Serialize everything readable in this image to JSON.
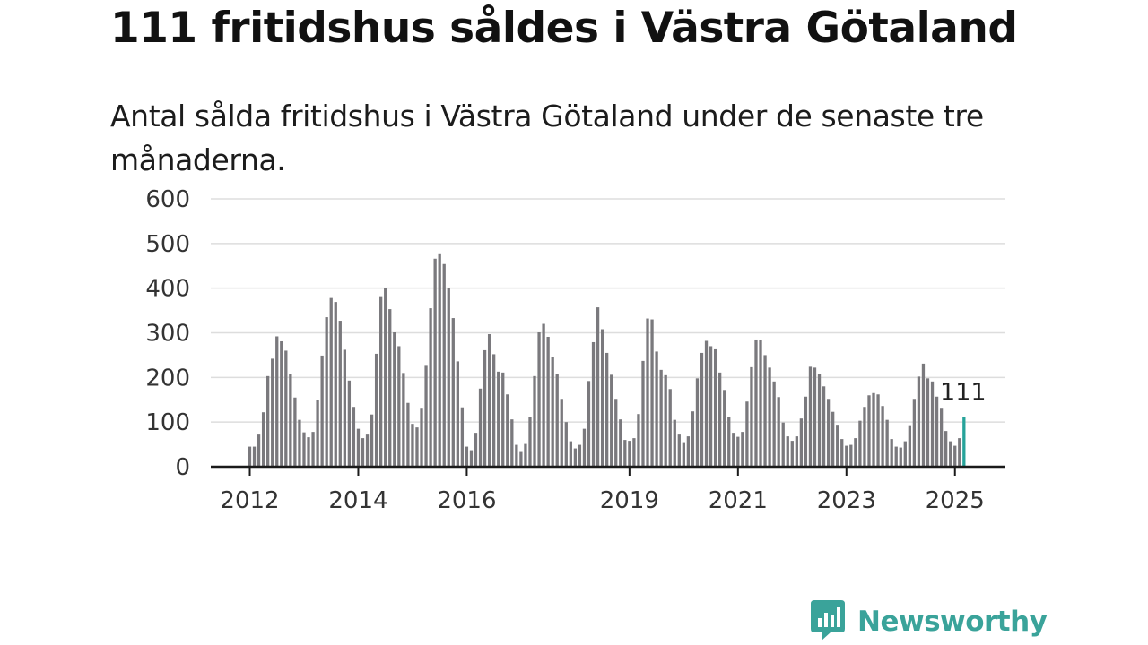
{
  "header": {
    "title": "111 fritidshus såldes i Västra Götaland",
    "subtitle": "Antal sålda fritidshus i Västra Götaland under de senaste tre månaderna."
  },
  "brand": {
    "name": "Newsworthy",
    "icon": "newsworthy-logo-icon"
  },
  "colors": {
    "bars": "#7a797d",
    "highlight": "#27a39a",
    "grid": "#dddddd",
    "axis": "#1a1a1a",
    "brand": "#3aa39a"
  },
  "chart_data": {
    "type": "bar",
    "ylim": [
      0,
      600
    ],
    "yticks": [
      0,
      100,
      200,
      300,
      400,
      500,
      600
    ],
    "xtick_labels": [
      "2012",
      "2014",
      "2016",
      "2019",
      "2021",
      "2023",
      "2025"
    ],
    "grid": true,
    "x_start": "2012-01",
    "x_end": "2025-03",
    "values": [
      45,
      45,
      72,
      122,
      203,
      242,
      292,
      281,
      260,
      208,
      155,
      105,
      77,
      66,
      78,
      150,
      249,
      335,
      378,
      369,
      327,
      262,
      193,
      134,
      85,
      64,
      72,
      117,
      253,
      382,
      401,
      353,
      301,
      270,
      210,
      143,
      96,
      88,
      132,
      228,
      355,
      466,
      478,
      454,
      401,
      333,
      236,
      133,
      45,
      37,
      76,
      175,
      261,
      297,
      252,
      213,
      211,
      162,
      106,
      49,
      35,
      51,
      111,
      203,
      301,
      320,
      291,
      245,
      208,
      152,
      100,
      57,
      41,
      49,
      85,
      192,
      279,
      357,
      308,
      255,
      206,
      152,
      106,
      60,
      58,
      64,
      118,
      237,
      332,
      330,
      258,
      217,
      205,
      174,
      105,
      72,
      55,
      68,
      124,
      198,
      255,
      282,
      270,
      263,
      211,
      172,
      111,
      76,
      67,
      78,
      146,
      223,
      285,
      283,
      250,
      222,
      191,
      156,
      99,
      68,
      58,
      68,
      108,
      157,
      224,
      222,
      207,
      180,
      152,
      123,
      94,
      62,
      47,
      49,
      64,
      103,
      134,
      160,
      165,
      162,
      136,
      105,
      62,
      45,
      43,
      57,
      93,
      152,
      202,
      231,
      198,
      191,
      157,
      132,
      80,
      57,
      47,
      64,
      111
    ],
    "annotation": {
      "label": "111",
      "value": 111
    }
  }
}
